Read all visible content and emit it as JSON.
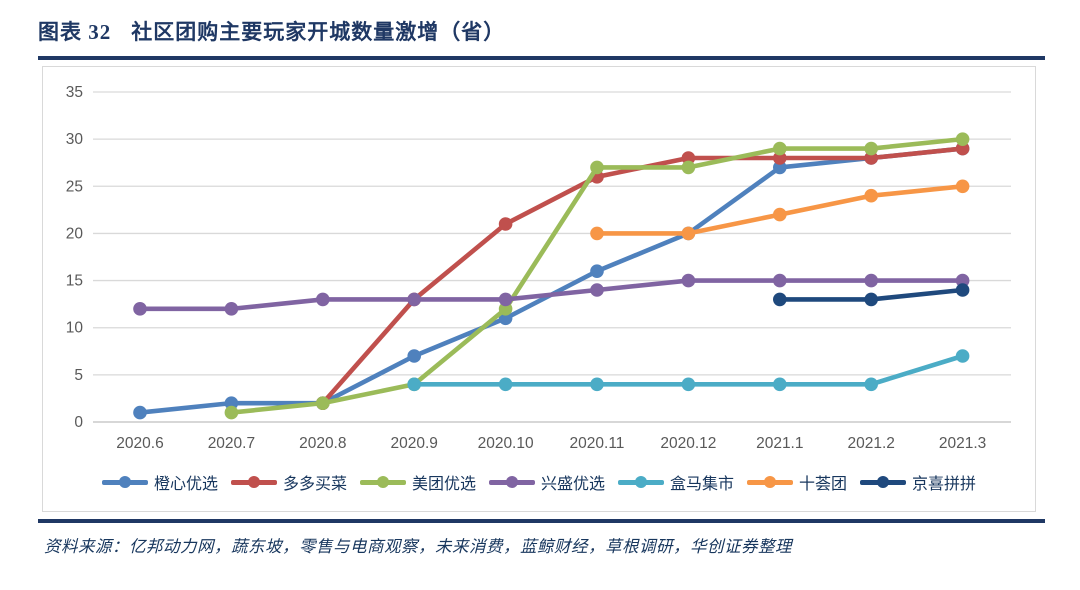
{
  "header": {
    "figure_label": "图表 32",
    "title": "社区团购主要玩家开城数量激增（省）"
  },
  "footer": {
    "source": "资料来源：亿邦动力网，蔬东坡，零售与电商观察，未来消费，蓝鲸财经，草根调研，华创证券整理"
  },
  "colors": {
    "accent_navy": "#1F3864",
    "grid": "#D9D9D9",
    "axis_line": "#BFBFBF",
    "axis_text": "#595959"
  },
  "chart_data": {
    "type": "line",
    "title": "",
    "xlabel": "",
    "ylabel": "",
    "ylim": [
      0,
      35
    ],
    "ytick_step": 5,
    "grid": true,
    "legend_position": "bottom",
    "categories": [
      "2020.6",
      "2020.7",
      "2020.8",
      "2020.9",
      "2020.10",
      "2020.11",
      "2020.12",
      "2021.1",
      "2021.2",
      "2021.3"
    ],
    "series": [
      {
        "name": "橙心优选",
        "color": "#4F81BD",
        "values": [
          1,
          2,
          2,
          7,
          11,
          16,
          20,
          27,
          28,
          29
        ]
      },
      {
        "name": "多多买菜",
        "color": "#C0504D",
        "values": [
          null,
          null,
          2,
          13,
          21,
          26,
          28,
          28,
          28,
          29
        ]
      },
      {
        "name": "美团优选",
        "color": "#9BBB59",
        "values": [
          null,
          1,
          2,
          4,
          12,
          27,
          27,
          29,
          29,
          30
        ]
      },
      {
        "name": "兴盛优选",
        "color": "#8064A2",
        "values": [
          12,
          12,
          13,
          13,
          13,
          14,
          15,
          15,
          15,
          15
        ]
      },
      {
        "name": "盒马集市",
        "color": "#4BACC6",
        "values": [
          null,
          null,
          null,
          4,
          4,
          4,
          4,
          4,
          4,
          7
        ]
      },
      {
        "name": "十荟团",
        "color": "#F79646",
        "values": [
          null,
          null,
          null,
          null,
          null,
          20,
          20,
          22,
          24,
          25
        ]
      },
      {
        "name": "京喜拼拼",
        "color": "#1F497D",
        "values": [
          null,
          null,
          null,
          null,
          null,
          null,
          null,
          13,
          13,
          14
        ]
      }
    ]
  }
}
